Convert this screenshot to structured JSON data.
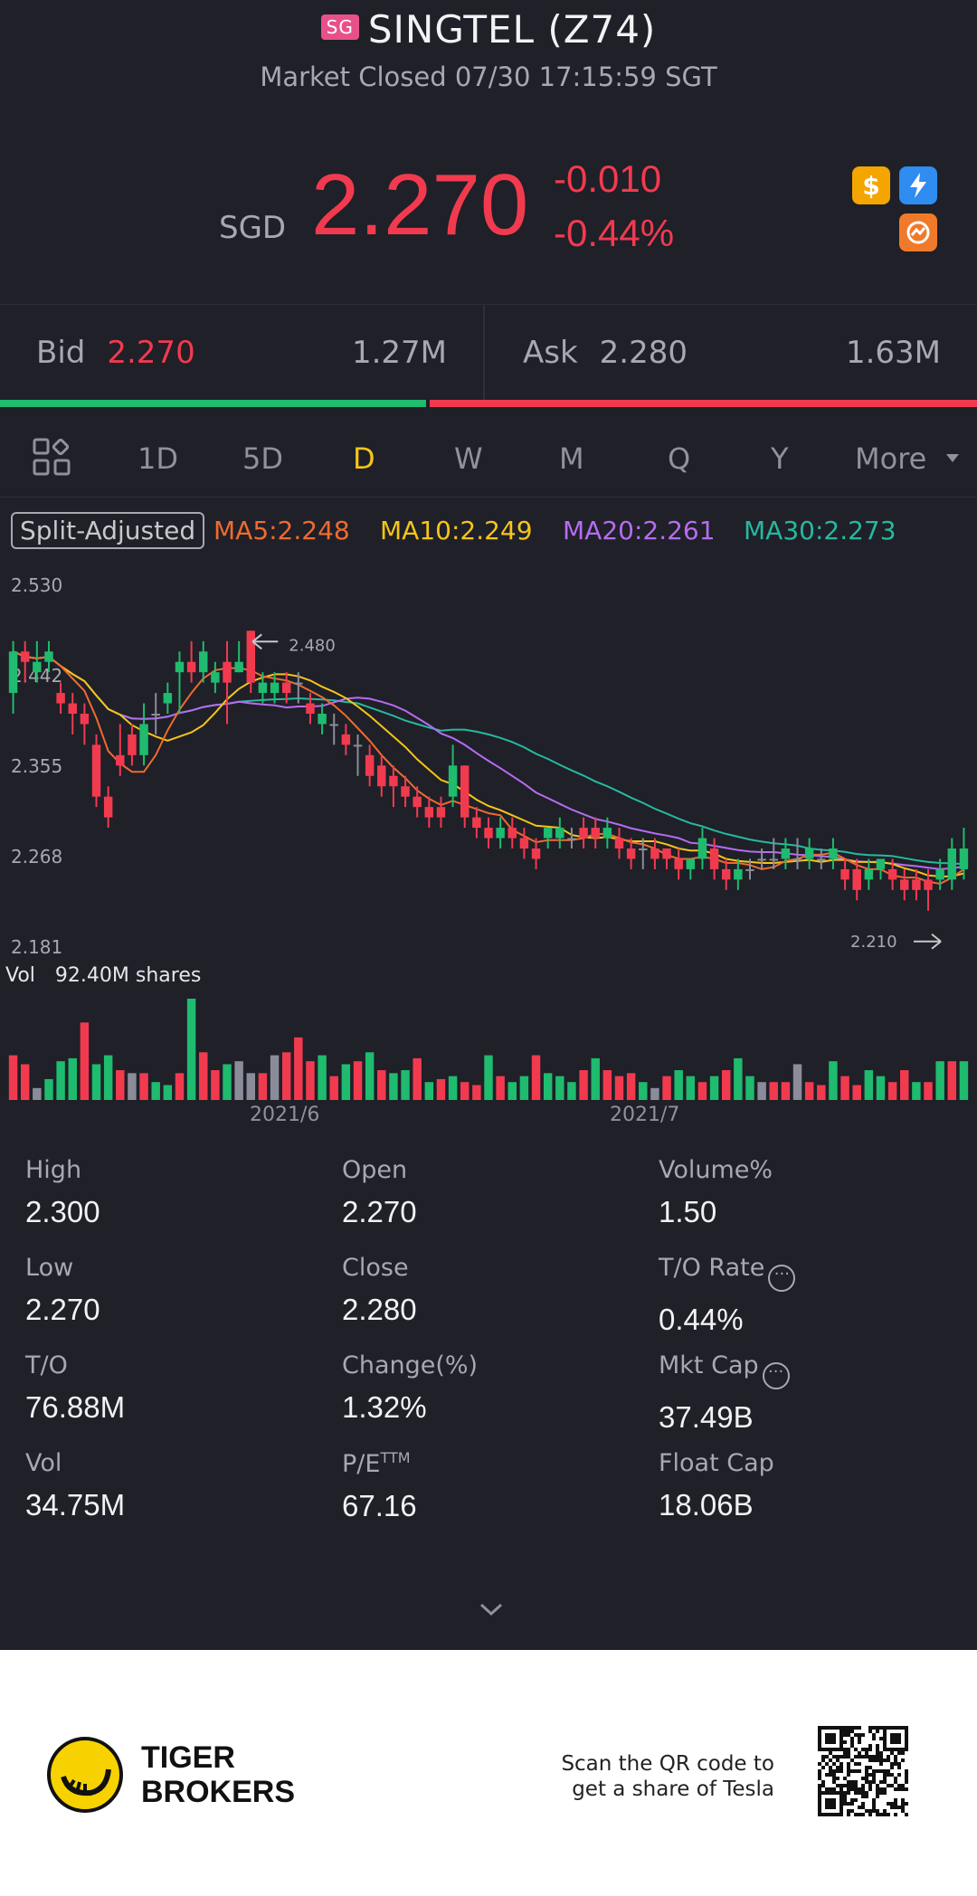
{
  "header": {
    "exchange_badge": "SG",
    "title": "SINGTEL (Z74)",
    "market_status": "Market Closed 07/30 17:15:59 SGT",
    "currency": "SGD",
    "price": "2.270",
    "change": "-0.010",
    "change_pct": "-0.44%",
    "icons": [
      "dollar-icon",
      "lightning-icon",
      "options-icon"
    ]
  },
  "quote": {
    "bid_label": "Bid",
    "bid_price": "2.270",
    "bid_qty": "1.27M",
    "ask_label": "Ask",
    "ask_price": "2.280",
    "ask_qty": "1.63M",
    "bid_ratio": 0.438
  },
  "tabs": {
    "items": [
      "1D",
      "5D",
      "D",
      "W",
      "M",
      "Q",
      "Y",
      "More"
    ],
    "active": "D"
  },
  "indicators": {
    "split_label": "Split-Adjusted",
    "ma5": "MA5:2.248",
    "ma10": "MA10:2.249",
    "ma20": "MA20:2.261",
    "ma30": "MA30:2.273",
    "colors": {
      "ma5": "#f06a30",
      "ma10": "#f5c518",
      "ma20": "#b66cf0",
      "ma30": "#27b8a0",
      "up": "#1fbb6e",
      "down": "#f23a4f",
      "flat": "#8a8d99"
    }
  },
  "chart_data": {
    "type": "candlestick",
    "y_ticks": [
      "2.530",
      "2.442",
      "2.355",
      "2.268",
      "2.181"
    ],
    "ylim": [
      2.181,
      2.53
    ],
    "high_marker": "2.480",
    "low_marker": "2.210",
    "vol_label": "Vol",
    "vol_value": "92.40M shares",
    "x_labels": [
      "2021/6",
      "2021/7"
    ],
    "candles": [
      [
        2.42,
        2.46,
        2.47,
        2.4
      ],
      [
        2.46,
        2.45,
        2.47,
        2.43
      ],
      [
        2.44,
        2.45,
        2.47,
        2.43
      ],
      [
        2.45,
        2.46,
        2.47,
        2.44
      ],
      [
        2.42,
        2.41,
        2.43,
        2.4
      ],
      [
        2.41,
        2.4,
        2.42,
        2.38
      ],
      [
        2.4,
        2.39,
        2.41,
        2.37
      ],
      [
        2.37,
        2.32,
        2.38,
        2.31
      ],
      [
        2.32,
        2.3,
        2.33,
        2.29
      ],
      [
        2.36,
        2.35,
        2.39,
        2.34
      ],
      [
        2.38,
        2.36,
        2.39,
        2.35
      ],
      [
        2.36,
        2.39,
        2.41,
        2.35
      ],
      [
        2.4,
        2.4,
        2.42,
        2.38
      ],
      [
        2.41,
        2.42,
        2.43,
        2.4
      ],
      [
        2.44,
        2.45,
        2.46,
        2.4
      ],
      [
        2.45,
        2.44,
        2.47,
        2.43
      ],
      [
        2.44,
        2.46,
        2.47,
        2.43
      ],
      [
        2.43,
        2.44,
        2.45,
        2.42
      ],
      [
        2.45,
        2.43,
        2.47,
        2.39
      ],
      [
        2.44,
        2.45,
        2.47,
        2.44
      ],
      [
        2.48,
        2.43,
        2.48,
        2.42
      ],
      [
        2.42,
        2.43,
        2.44,
        2.41
      ],
      [
        2.42,
        2.43,
        2.44,
        2.41
      ],
      [
        2.43,
        2.42,
        2.44,
        2.41
      ],
      [
        2.43,
        2.43,
        2.44,
        2.41
      ],
      [
        2.41,
        2.4,
        2.42,
        2.39
      ],
      [
        2.39,
        2.4,
        2.41,
        2.38
      ],
      [
        2.39,
        2.39,
        2.4,
        2.37
      ],
      [
        2.38,
        2.37,
        2.39,
        2.36
      ],
      [
        2.37,
        2.37,
        2.38,
        2.34
      ],
      [
        2.36,
        2.34,
        2.37,
        2.33
      ],
      [
        2.35,
        2.33,
        2.36,
        2.32
      ],
      [
        2.34,
        2.33,
        2.35,
        2.31
      ],
      [
        2.33,
        2.32,
        2.34,
        2.31
      ],
      [
        2.32,
        2.31,
        2.33,
        2.3
      ],
      [
        2.31,
        2.3,
        2.32,
        2.29
      ],
      [
        2.31,
        2.3,
        2.32,
        2.29
      ],
      [
        2.32,
        2.35,
        2.37,
        2.31
      ],
      [
        2.35,
        2.3,
        2.35,
        2.29
      ],
      [
        2.3,
        2.29,
        2.31,
        2.28
      ],
      [
        2.29,
        2.28,
        2.3,
        2.27
      ],
      [
        2.28,
        2.29,
        2.3,
        2.27
      ],
      [
        2.29,
        2.28,
        2.3,
        2.27
      ],
      [
        2.28,
        2.27,
        2.29,
        2.26
      ],
      [
        2.27,
        2.26,
        2.28,
        2.25
      ],
      [
        2.28,
        2.29,
        2.29,
        2.27
      ],
      [
        2.28,
        2.29,
        2.3,
        2.27
      ],
      [
        2.28,
        2.28,
        2.29,
        2.27
      ],
      [
        2.29,
        2.28,
        2.3,
        2.27
      ],
      [
        2.29,
        2.28,
        2.3,
        2.27
      ],
      [
        2.28,
        2.29,
        2.3,
        2.27
      ],
      [
        2.28,
        2.27,
        2.29,
        2.26
      ],
      [
        2.27,
        2.26,
        2.28,
        2.25
      ],
      [
        2.27,
        2.27,
        2.28,
        2.25
      ],
      [
        2.27,
        2.26,
        2.28,
        2.25
      ],
      [
        2.27,
        2.26,
        2.27,
        2.25
      ],
      [
        2.26,
        2.25,
        2.27,
        2.24
      ],
      [
        2.25,
        2.26,
        2.26,
        2.24
      ],
      [
        2.26,
        2.28,
        2.29,
        2.25
      ],
      [
        2.27,
        2.25,
        2.28,
        2.24
      ],
      [
        2.25,
        2.24,
        2.26,
        2.23
      ],
      [
        2.24,
        2.25,
        2.26,
        2.23
      ],
      [
        2.25,
        2.25,
        2.26,
        2.24
      ],
      [
        2.26,
        2.26,
        2.27,
        2.25
      ],
      [
        2.26,
        2.26,
        2.28,
        2.25
      ],
      [
        2.26,
        2.27,
        2.28,
        2.25
      ],
      [
        2.26,
        2.26,
        2.28,
        2.25
      ],
      [
        2.26,
        2.27,
        2.28,
        2.25
      ],
      [
        2.26,
        2.26,
        2.27,
        2.25
      ],
      [
        2.26,
        2.27,
        2.28,
        2.25
      ],
      [
        2.25,
        2.24,
        2.26,
        2.23
      ],
      [
        2.25,
        2.23,
        2.26,
        2.22
      ],
      [
        2.24,
        2.25,
        2.26,
        2.23
      ],
      [
        2.25,
        2.26,
        2.26,
        2.24
      ],
      [
        2.25,
        2.24,
        2.26,
        2.23
      ],
      [
        2.24,
        2.23,
        2.25,
        2.22
      ],
      [
        2.24,
        2.23,
        2.25,
        2.22
      ],
      [
        2.24,
        2.23,
        2.25,
        2.21
      ],
      [
        2.24,
        2.25,
        2.26,
        2.23
      ],
      [
        2.24,
        2.27,
        2.28,
        2.23
      ],
      [
        2.25,
        2.27,
        2.29,
        2.24
      ]
    ],
    "volume": [
      1.5,
      1.2,
      0.4,
      0.7,
      1.3,
      1.4,
      2.6,
      1.2,
      1.5,
      1.0,
      0.9,
      0.9,
      0.6,
      0.5,
      0.9,
      3.4,
      1.6,
      1.0,
      1.2,
      1.3,
      0.9,
      0.9,
      1.5,
      1.6,
      2.1,
      1.3,
      1.5,
      0.8,
      1.2,
      1.3,
      1.6,
      1.0,
      0.9,
      1.0,
      1.4,
      0.6,
      0.7,
      0.8,
      0.6,
      0.5,
      1.5,
      0.8,
      0.6,
      0.8,
      1.5,
      0.9,
      0.8,
      0.6,
      1.0,
      1.4,
      1.0,
      0.8,
      0.9,
      0.6,
      0.4,
      0.8,
      1.0,
      0.8,
      0.6,
      0.8,
      1.0,
      1.4,
      0.8,
      0.6,
      0.6,
      0.6,
      1.2,
      0.6,
      0.5,
      1.3,
      0.8,
      0.5,
      1.0,
      0.8,
      0.6,
      1.0,
      0.6,
      0.6,
      1.3,
      1.3,
      1.3
    ],
    "vol_colors": [
      "down",
      "down",
      "flat",
      "up",
      "up",
      "up",
      "down",
      "up",
      "up",
      "down",
      "flat",
      "down",
      "up",
      "up",
      "down",
      "up",
      "down",
      "down",
      "up",
      "flat",
      "flat",
      "down",
      "flat",
      "down",
      "down",
      "down",
      "up",
      "down",
      "up",
      "down",
      "up",
      "down",
      "up",
      "up",
      "down",
      "up",
      "down",
      "up",
      "down",
      "down",
      "up",
      "down",
      "up",
      "up",
      "down",
      "up",
      "up",
      "up",
      "down",
      "up",
      "down",
      "down",
      "down",
      "up",
      "flat",
      "down",
      "up",
      "up",
      "down",
      "up",
      "down",
      "up",
      "up",
      "flat",
      "down",
      "down",
      "flat",
      "down",
      "down",
      "up",
      "down",
      "down",
      "up",
      "up",
      "down",
      "down",
      "up",
      "down",
      "up",
      "down",
      "up"
    ]
  },
  "stats": {
    "high_label": "High",
    "high": "2.300",
    "open_label": "Open",
    "open": "2.270",
    "volume_pct_label": "Volume%",
    "volume_pct": "1.50",
    "low_label": "Low",
    "low": "2.270",
    "close_label": "Close",
    "close": "2.280",
    "to_rate_label": "T/O Rate",
    "to_rate": "0.44%",
    "to_label": "T/O",
    "to": "76.88M",
    "change_label": "Change(%)",
    "change": "1.32%",
    "mkt_cap_label": "Mkt Cap",
    "mkt_cap": "37.49B",
    "vol_label": "Vol",
    "vol": "34.75M",
    "pe_label": "P/E",
    "pe_sup": "TTM",
    "pe": "67.16",
    "float_cap_label": "Float Cap",
    "float_cap": "18.06B"
  },
  "footer": {
    "brand_line1": "TIGER",
    "brand_line2": "BROKERS",
    "promo_line1": "Scan the QR code to",
    "promo_line2": "get a share of Tesla"
  }
}
